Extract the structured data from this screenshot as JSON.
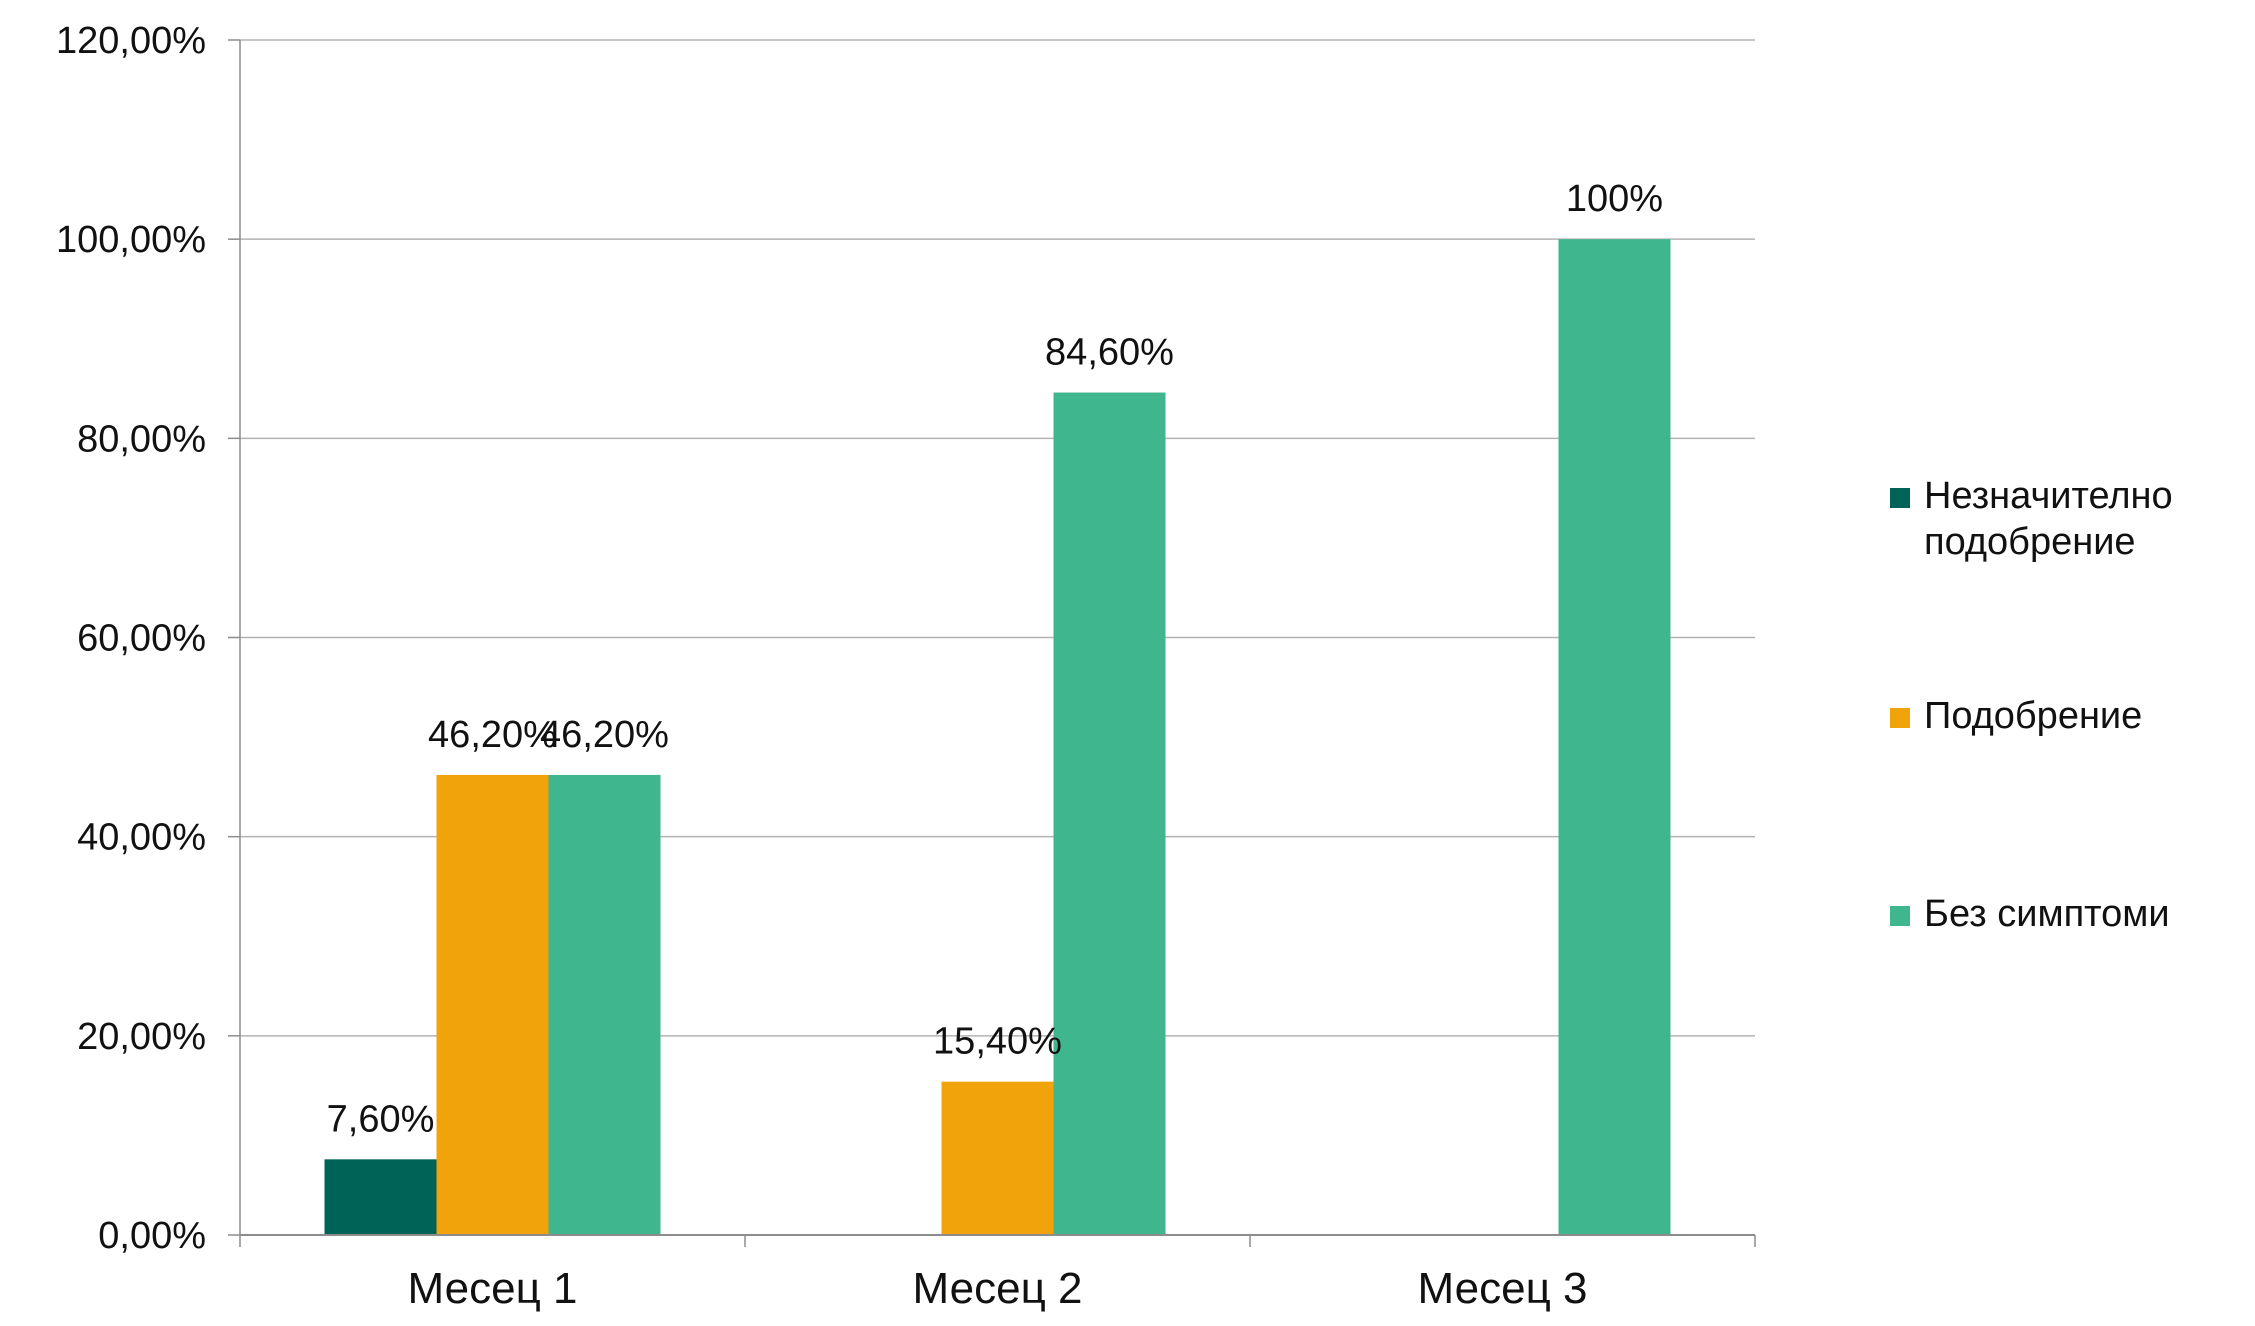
{
  "chart_data": {
    "type": "bar",
    "title": "",
    "xlabel": "",
    "ylabel": "",
    "ylim": [
      0,
      120
    ],
    "yticks": [
      {
        "value": 0,
        "label": "0,00%"
      },
      {
        "value": 20,
        "label": "20,00%"
      },
      {
        "value": 40,
        "label": "40,00%"
      },
      {
        "value": 60,
        "label": "60,00%"
      },
      {
        "value": 80,
        "label": "80,00%"
      },
      {
        "value": 100,
        "label": "100,00%"
      },
      {
        "value": 120,
        "label": "120,00%"
      }
    ],
    "grid": true,
    "legend": "right",
    "categories": [
      "Месец 1",
      "Месец 2",
      "Месец 3"
    ],
    "series": [
      {
        "name": "Незначително подобрение",
        "legend_lines": [
          "Незначително",
          "подобрение"
        ],
        "color": "#006357",
        "values": [
          7.6,
          null,
          null
        ],
        "labels": [
          "7,60%",
          "",
          ""
        ]
      },
      {
        "name": "Подобрение",
        "legend_lines": [
          "Подобрение"
        ],
        "color": "#F0A30A",
        "values": [
          46.2,
          15.4,
          null
        ],
        "labels": [
          "46,20%",
          "15,40%",
          ""
        ]
      },
      {
        "name": "Без симптоми",
        "legend_lines": [
          "Без симптоми"
        ],
        "color": "#40B68E",
        "values": [
          46.2,
          84.6,
          100
        ],
        "labels": [
          "46,20%",
          "84,60%",
          "100%"
        ]
      }
    ]
  }
}
